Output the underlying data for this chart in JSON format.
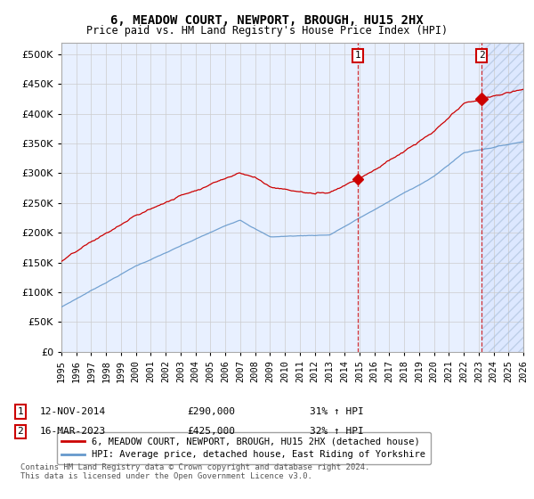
{
  "title": "6, MEADOW COURT, NEWPORT, BROUGH, HU15 2HX",
  "subtitle": "Price paid vs. HM Land Registry's House Price Index (HPI)",
  "legend_label_red": "6, MEADOW COURT, NEWPORT, BROUGH, HU15 2HX (detached house)",
  "legend_label_blue": "HPI: Average price, detached house, East Riding of Yorkshire",
  "footnote": "Contains HM Land Registry data © Crown copyright and database right 2024.\nThis data is licensed under the Open Government Licence v3.0.",
  "transactions": [
    {
      "num": 1,
      "date": "12-NOV-2014",
      "price": 290000,
      "hpi_pct": "31% ↑ HPI",
      "x": 2014.87
    },
    {
      "num": 2,
      "date": "16-MAR-2023",
      "price": 425000,
      "hpi_pct": "32% ↑ HPI",
      "x": 2023.21
    }
  ],
  "ylim": [
    0,
    520000
  ],
  "xlim_start": 1995,
  "xlim_end": 2026,
  "yticks": [
    0,
    50000,
    100000,
    150000,
    200000,
    250000,
    300000,
    350000,
    400000,
    450000,
    500000
  ],
  "xticks": [
    1995,
    1996,
    1997,
    1998,
    1999,
    2000,
    2001,
    2002,
    2003,
    2004,
    2005,
    2006,
    2007,
    2008,
    2009,
    2010,
    2011,
    2012,
    2013,
    2014,
    2015,
    2016,
    2017,
    2018,
    2019,
    2020,
    2021,
    2022,
    2023,
    2024,
    2025,
    2026
  ],
  "red_color": "#cc0000",
  "blue_color": "#6699cc",
  "bg_plot": "#e8f0ff",
  "bg_future": "#dde8ff",
  "grid_color": "#cccccc",
  "transaction_box_color": "#cc0000",
  "vline_color": "#cc0000",
  "hatch_color": "#aabbdd",
  "t1_price": 290000,
  "t2_price": 425000,
  "t1_x": 2014.87,
  "t2_x": 2023.21
}
